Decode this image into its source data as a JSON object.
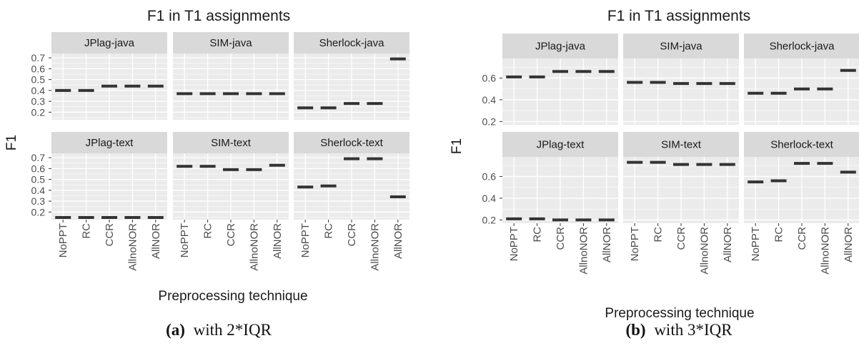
{
  "figure": {
    "captions": [
      {
        "label": "(a)",
        "text": "with 2*IQR"
      },
      {
        "label": "(b)",
        "text": "with 3*IQR"
      }
    ],
    "colors": {
      "panel_bg": "#ebebeb",
      "strip_bg": "#d9d9d9",
      "grid": "#ffffff",
      "median": "#333333"
    }
  },
  "chart_data": [
    {
      "type": "boxplot-faceted",
      "title": "F1 in T1 assignments",
      "xlabel": "Preprocessing technique",
      "ylabel": "F1",
      "categories": [
        "NoPPT",
        "RC",
        "CCR",
        "AllnoNOR",
        "AllNOR"
      ],
      "yticks": [
        0.2,
        0.3,
        0.4,
        0.5,
        0.6,
        0.7
      ],
      "ylim": [
        0.13,
        0.74
      ],
      "grid": true,
      "facets": [
        {
          "name": "JPlag-java",
          "values": [
            0.4,
            0.4,
            0.44,
            0.44,
            0.44
          ]
        },
        {
          "name": "SIM-java",
          "values": [
            0.37,
            0.37,
            0.37,
            0.37,
            0.37
          ]
        },
        {
          "name": "Sherlock-java",
          "values": [
            0.24,
            0.24,
            0.28,
            0.28,
            0.69
          ]
        },
        {
          "name": "JPlag-text",
          "values": [
            0.15,
            0.15,
            0.15,
            0.15,
            0.15
          ]
        },
        {
          "name": "SIM-text",
          "values": [
            0.62,
            0.62,
            0.59,
            0.59,
            0.63
          ]
        },
        {
          "name": "Sherlock-text",
          "values": [
            0.43,
            0.44,
            0.69,
            0.69,
            0.34
          ]
        }
      ]
    },
    {
      "type": "boxplot-faceted",
      "title": "F1 in T1 assignments",
      "xlabel": "Preprocessing technique",
      "ylabel": "F1",
      "categories": [
        "NoPPT",
        "RC",
        "CCR",
        "AllnoNOR",
        "AllNOR"
      ],
      "yticks": [
        0.2,
        0.4,
        0.6
      ],
      "ylim": [
        0.17,
        0.78
      ],
      "grid": true,
      "facets": [
        {
          "name": "JPlag-java",
          "values": [
            0.61,
            0.61,
            0.66,
            0.66,
            0.66
          ]
        },
        {
          "name": "SIM-java",
          "values": [
            0.56,
            0.56,
            0.55,
            0.55,
            0.55
          ]
        },
        {
          "name": "Sherlock-java",
          "values": [
            0.46,
            0.46,
            0.5,
            0.5,
            0.67
          ]
        },
        {
          "name": "JPlag-text",
          "values": [
            0.21,
            0.21,
            0.2,
            0.2,
            0.2
          ]
        },
        {
          "name": "SIM-text",
          "values": [
            0.73,
            0.73,
            0.71,
            0.71,
            0.71
          ]
        },
        {
          "name": "Sherlock-text",
          "values": [
            0.55,
            0.56,
            0.72,
            0.72,
            0.64
          ]
        }
      ]
    }
  ]
}
